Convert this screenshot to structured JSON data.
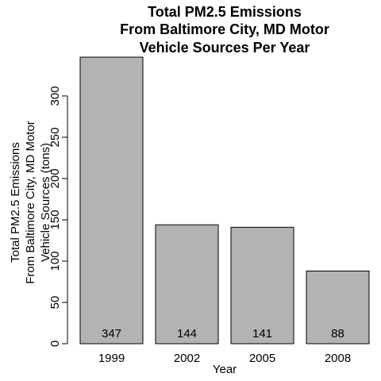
{
  "chart_data": {
    "type": "bar",
    "title_lines": [
      "Total PM2.5 Emissions",
      "From Baltimore City, MD Motor",
      "Vehicle Sources Per Year"
    ],
    "xlabel": "Year",
    "ylabel_lines": [
      "Total PM2.5 Emissions",
      "From Baltimore City, MD Motor",
      "Vehicle Sources (tons)"
    ],
    "categories": [
      "1999",
      "2002",
      "2005",
      "2008"
    ],
    "values": [
      347,
      144,
      141,
      88
    ],
    "value_labels": [
      "347",
      "144",
      "141",
      "88"
    ],
    "ylim": [
      0,
      347
    ],
    "yticks": [
      0,
      50,
      100,
      150,
      200,
      250,
      300
    ],
    "ytick_labels": [
      "0",
      "50",
      "100",
      "150",
      "200",
      "250",
      "300"
    ],
    "bar_color": "#b3b3b3",
    "grid": false,
    "legend": "none"
  }
}
